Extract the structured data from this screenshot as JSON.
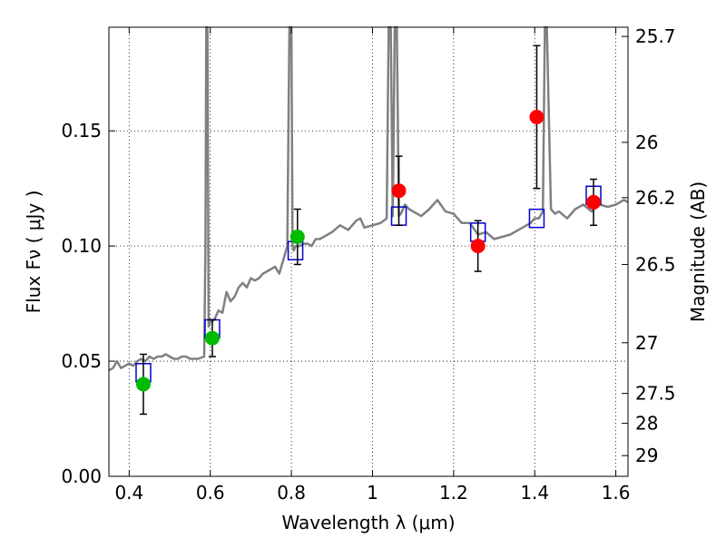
{
  "chart_data": {
    "type": "scatter",
    "title": "",
    "xlabel": "Wavelength  λ (μm)",
    "ylabel": "Flux  Fν  ( μJy )",
    "ylabel_right": "Magnitude (AB)",
    "xlim": [
      0.35,
      1.63
    ],
    "ylim": [
      0.0,
      0.195
    ],
    "grid": true,
    "x_ticks": [
      0.4,
      0.6,
      0.8,
      1.0,
      1.2,
      1.4,
      1.6
    ],
    "x_tick_labels": [
      "0.4",
      "0.6",
      "0.8",
      "1",
      "1.2",
      "1.4",
      "1.6"
    ],
    "y_ticks": [
      0.0,
      0.05,
      0.1,
      0.15
    ],
    "y_tick_labels": [
      "0.00",
      "0.05",
      "0.10",
      "0.15"
    ],
    "right_ticks": [
      {
        "label": "25.7",
        "flux": 0.191
      },
      {
        "label": "26",
        "flux": 0.145
      },
      {
        "label": "26.2",
        "flux": 0.121
      },
      {
        "label": "26.5",
        "flux": 0.092
      },
      {
        "label": "27",
        "flux": 0.058
      },
      {
        "label": "27.5",
        "flux": 0.036
      },
      {
        "label": "28",
        "flux": 0.023
      },
      {
        "label": "29",
        "flux": 0.009
      }
    ],
    "colors": {
      "model": "#808080",
      "green": "#00bb00",
      "red": "#ff0000",
      "box": "#0000cc",
      "error": "#000000"
    },
    "series": [
      {
        "kind": "model_spectrum",
        "x": [
          0.35,
          0.36,
          0.37,
          0.38,
          0.39,
          0.4,
          0.41,
          0.42,
          0.43,
          0.44,
          0.45,
          0.46,
          0.47,
          0.48,
          0.49,
          0.5,
          0.51,
          0.52,
          0.53,
          0.54,
          0.55,
          0.56,
          0.57,
          0.585,
          0.588,
          0.59,
          0.593,
          0.596,
          0.6,
          0.61,
          0.62,
          0.63,
          0.64,
          0.65,
          0.66,
          0.67,
          0.68,
          0.69,
          0.7,
          0.71,
          0.72,
          0.73,
          0.74,
          0.75,
          0.76,
          0.77,
          0.78,
          0.79,
          0.795,
          0.8,
          0.803,
          0.806,
          0.81,
          0.82,
          0.83,
          0.84,
          0.85,
          0.86,
          0.87,
          0.88,
          0.9,
          0.92,
          0.94,
          0.96,
          0.97,
          0.98,
          1.0,
          1.02,
          1.035,
          1.04,
          1.045,
          1.05,
          1.055,
          1.06,
          1.065,
          1.07,
          1.08,
          1.09,
          1.1,
          1.12,
          1.14,
          1.16,
          1.18,
          1.2,
          1.22,
          1.24,
          1.26,
          1.28,
          1.3,
          1.32,
          1.34,
          1.36,
          1.38,
          1.39,
          1.4,
          1.41,
          1.42,
          1.425,
          1.43,
          1.44,
          1.45,
          1.46,
          1.48,
          1.5,
          1.52,
          1.54,
          1.56,
          1.58,
          1.6,
          1.62,
          1.63
        ],
        "y": [
          0.046,
          0.047,
          0.05,
          0.047,
          0.048,
          0.049,
          0.048,
          0.05,
          0.051,
          0.05,
          0.052,
          0.051,
          0.052,
          0.052,
          0.053,
          0.052,
          0.051,
          0.051,
          0.052,
          0.052,
          0.051,
          0.051,
          0.051,
          0.052,
          0.1,
          0.2,
          0.2,
          0.065,
          0.067,
          0.068,
          0.072,
          0.071,
          0.08,
          0.076,
          0.078,
          0.082,
          0.084,
          0.082,
          0.086,
          0.085,
          0.086,
          0.088,
          0.089,
          0.09,
          0.091,
          0.088,
          0.094,
          0.1,
          0.2,
          0.2,
          0.1,
          0.098,
          0.1,
          0.1,
          0.101,
          0.101,
          0.1,
          0.103,
          0.103,
          0.104,
          0.106,
          0.109,
          0.107,
          0.111,
          0.112,
          0.108,
          0.109,
          0.11,
          0.112,
          0.2,
          0.2,
          0.113,
          0.2,
          0.2,
          0.113,
          0.114,
          0.118,
          0.116,
          0.115,
          0.113,
          0.116,
          0.12,
          0.115,
          0.114,
          0.11,
          0.11,
          0.105,
          0.106,
          0.103,
          0.104,
          0.105,
          0.107,
          0.109,
          0.11,
          0.112,
          0.112,
          0.115,
          0.2,
          0.2,
          0.116,
          0.114,
          0.115,
          0.112,
          0.116,
          0.118,
          0.115,
          0.118,
          0.117,
          0.118,
          0.12,
          0.119
        ]
      },
      {
        "kind": "synthetic_band_boxes",
        "x": [
          0.435,
          0.605,
          0.81,
          1.065,
          1.26,
          1.405,
          1.545
        ],
        "y": [
          0.045,
          0.064,
          0.098,
          0.113,
          0.106,
          0.112,
          0.122
        ]
      },
      {
        "kind": "observed_green",
        "x": [
          0.435,
          0.605,
          0.815
        ],
        "y": [
          0.04,
          0.06,
          0.104
        ],
        "yerr": [
          0.013,
          0.008,
          0.012
        ]
      },
      {
        "kind": "observed_red",
        "x": [
          1.065,
          1.26,
          1.405,
          1.545
        ],
        "y": [
          0.124,
          0.1,
          0.156,
          0.119
        ],
        "yerr": [
          0.015,
          0.011,
          0.031,
          0.01
        ]
      }
    ]
  }
}
